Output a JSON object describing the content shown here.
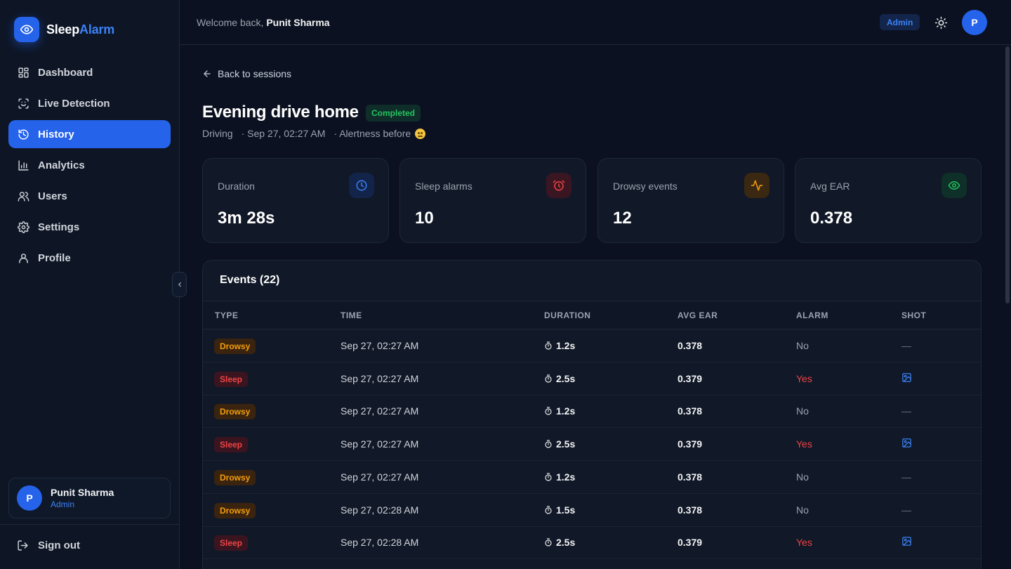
{
  "brand": {
    "name_part1": "Sleep",
    "name_part2": "Alarm"
  },
  "sidebar": {
    "items": [
      {
        "label": "Dashboard",
        "icon": "grid-icon"
      },
      {
        "label": "Live Detection",
        "icon": "scan-face-icon"
      },
      {
        "label": "History",
        "icon": "history-icon",
        "active": true
      },
      {
        "label": "Analytics",
        "icon": "bar-chart-icon"
      },
      {
        "label": "Users",
        "icon": "users-icon"
      },
      {
        "label": "Settings",
        "icon": "gear-icon"
      },
      {
        "label": "Profile",
        "icon": "user-icon"
      }
    ],
    "user": {
      "initial": "P",
      "name": "Punit Sharma",
      "role": "Admin"
    },
    "signout_label": "Sign out"
  },
  "header": {
    "welcome_prefix": "Welcome back,",
    "user_name": "Punit Sharma",
    "role_badge": "Admin",
    "avatar_initial": "P"
  },
  "session": {
    "back_label": "Back to sessions",
    "title": "Evening drive home",
    "status": "Completed",
    "activity": "Driving",
    "datetime": "· Sep 27, 02:27 AM",
    "alertness_label": "· Alertness before",
    "alertness_emoji": "tired-face-emoji"
  },
  "stats": [
    {
      "label": "Duration",
      "value": "3m 28s",
      "icon": "clock-icon",
      "color": "#3b82f6"
    },
    {
      "label": "Sleep alarms",
      "value": "10",
      "icon": "alarm-clock-icon",
      "color": "#ef4444"
    },
    {
      "label": "Drowsy events",
      "value": "12",
      "icon": "activity-icon",
      "color": "#f59e0b"
    },
    {
      "label": "Avg EAR",
      "value": "0.378",
      "icon": "eye-icon",
      "color": "#22c55e"
    }
  ],
  "events": {
    "title": "Events (22)",
    "columns": [
      "TYPE",
      "TIME",
      "DURATION",
      "AVG EAR",
      "ALARM",
      "SHOT"
    ],
    "rows": [
      {
        "type": "Drowsy",
        "time": "Sep 27, 02:27 AM",
        "duration": "1.2s",
        "ear": "0.378",
        "alarm": "No",
        "shot": "—"
      },
      {
        "type": "Sleep",
        "time": "Sep 27, 02:27 AM",
        "duration": "2.5s",
        "ear": "0.379",
        "alarm": "Yes",
        "shot": "image-icon"
      },
      {
        "type": "Drowsy",
        "time": "Sep 27, 02:27 AM",
        "duration": "1.2s",
        "ear": "0.378",
        "alarm": "No",
        "shot": "—"
      },
      {
        "type": "Sleep",
        "time": "Sep 27, 02:27 AM",
        "duration": "2.5s",
        "ear": "0.379",
        "alarm": "Yes",
        "shot": "image-icon"
      },
      {
        "type": "Drowsy",
        "time": "Sep 27, 02:27 AM",
        "duration": "1.2s",
        "ear": "0.378",
        "alarm": "No",
        "shot": "—"
      },
      {
        "type": "Drowsy",
        "time": "Sep 27, 02:28 AM",
        "duration": "1.5s",
        "ear": "0.378",
        "alarm": "No",
        "shot": "—"
      },
      {
        "type": "Sleep",
        "time": "Sep 27, 02:28 AM",
        "duration": "2.5s",
        "ear": "0.379",
        "alarm": "Yes",
        "shot": "image-icon"
      }
    ]
  }
}
